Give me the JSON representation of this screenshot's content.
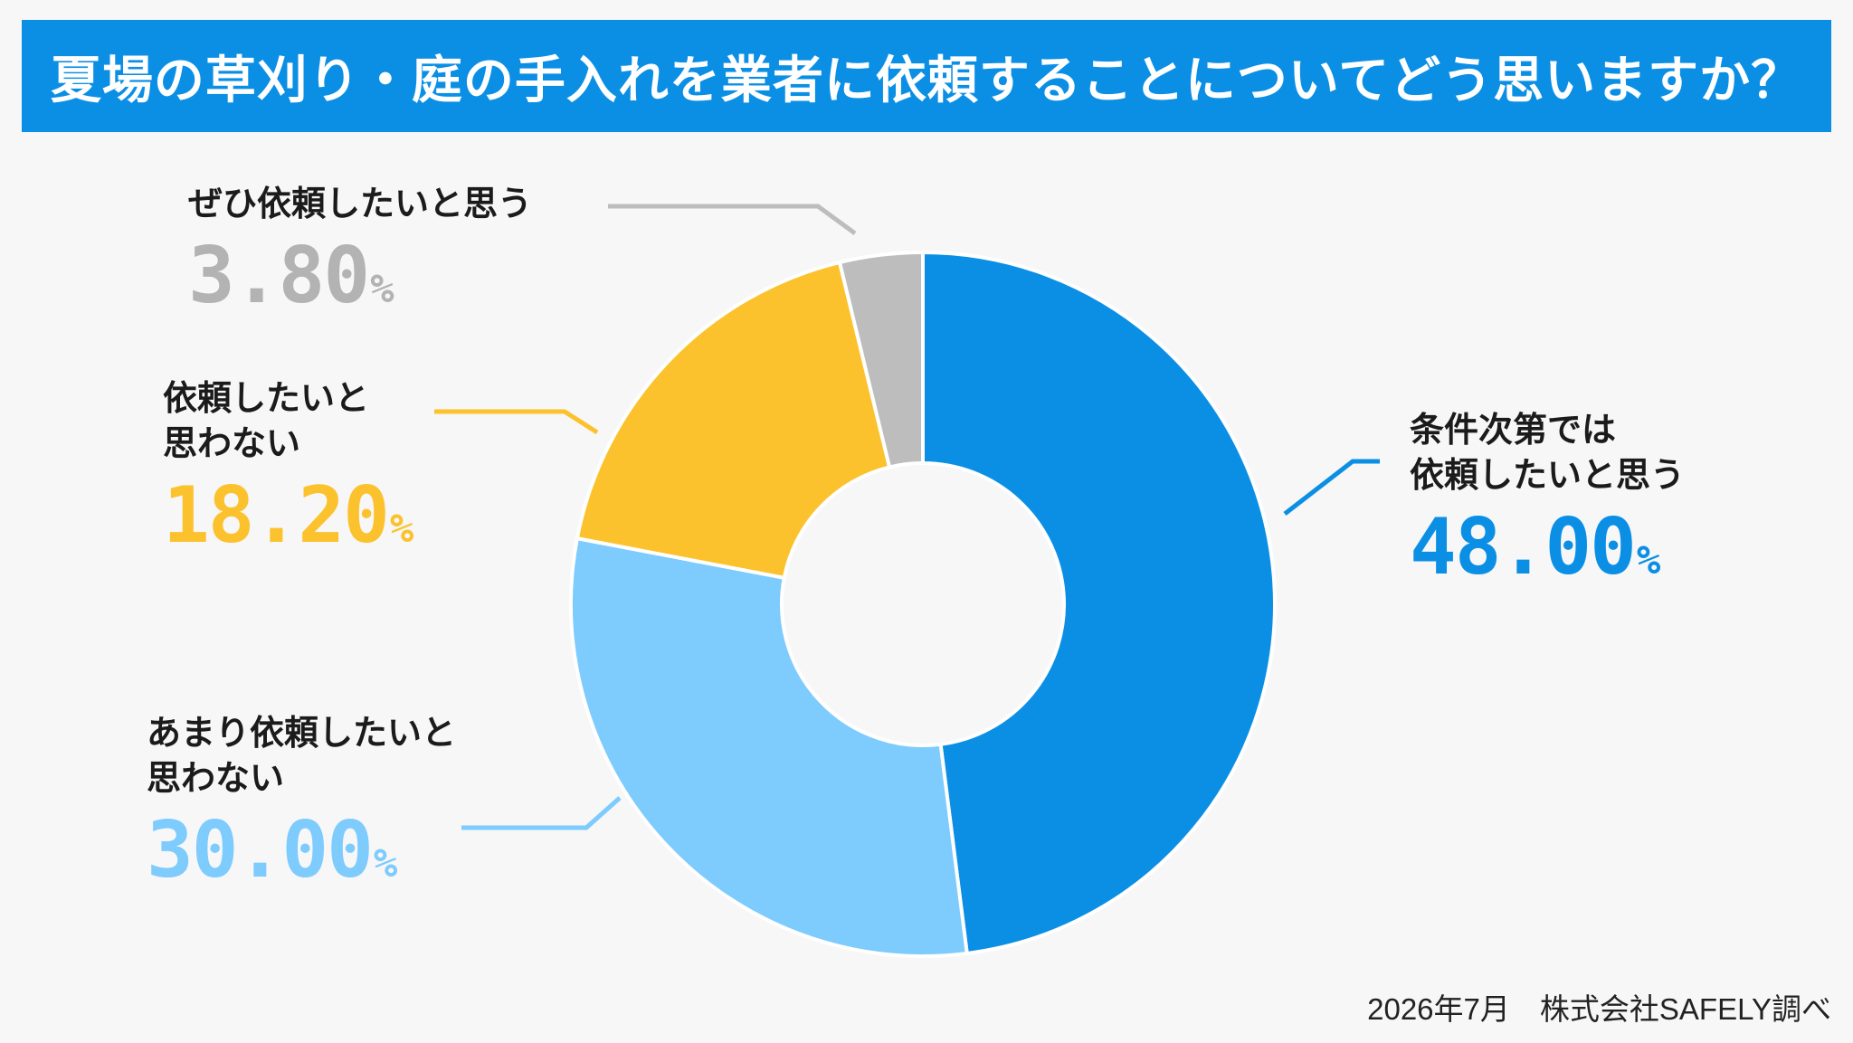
{
  "title": "夏場の草刈り・庭の手入れを業者に依頼することについてどう思いますか？",
  "source": "2026年7月　株式会社SAFELY調べ",
  "colors": {
    "title_bg": "#0b8fe5",
    "title_text": "#ffffff"
  },
  "chart_data": {
    "type": "pie",
    "variant": "donut",
    "title": "夏場の草刈り・庭の手入れを業者に依頼することについてどう思いますか？",
    "unit": "%",
    "slices": [
      {
        "label_lines": [
          "条件次第では",
          "依頼したいと思う"
        ],
        "value": 48.0,
        "value_text": "48.00",
        "color": "#0b8fe5"
      },
      {
        "label_lines": [
          "あまり依頼したいと",
          "思わない"
        ],
        "value": 30.0,
        "value_text": "30.00",
        "color": "#7ecbfd"
      },
      {
        "label_lines": [
          "依頼したいと",
          "思わない"
        ],
        "value": 18.2,
        "value_text": "18.20",
        "color": "#fcc22d"
      },
      {
        "label_lines": [
          "ぜひ依頼したいと思う"
        ],
        "value": 3.8,
        "value_text": "3.80",
        "color": "#bdbdbd"
      }
    ]
  }
}
